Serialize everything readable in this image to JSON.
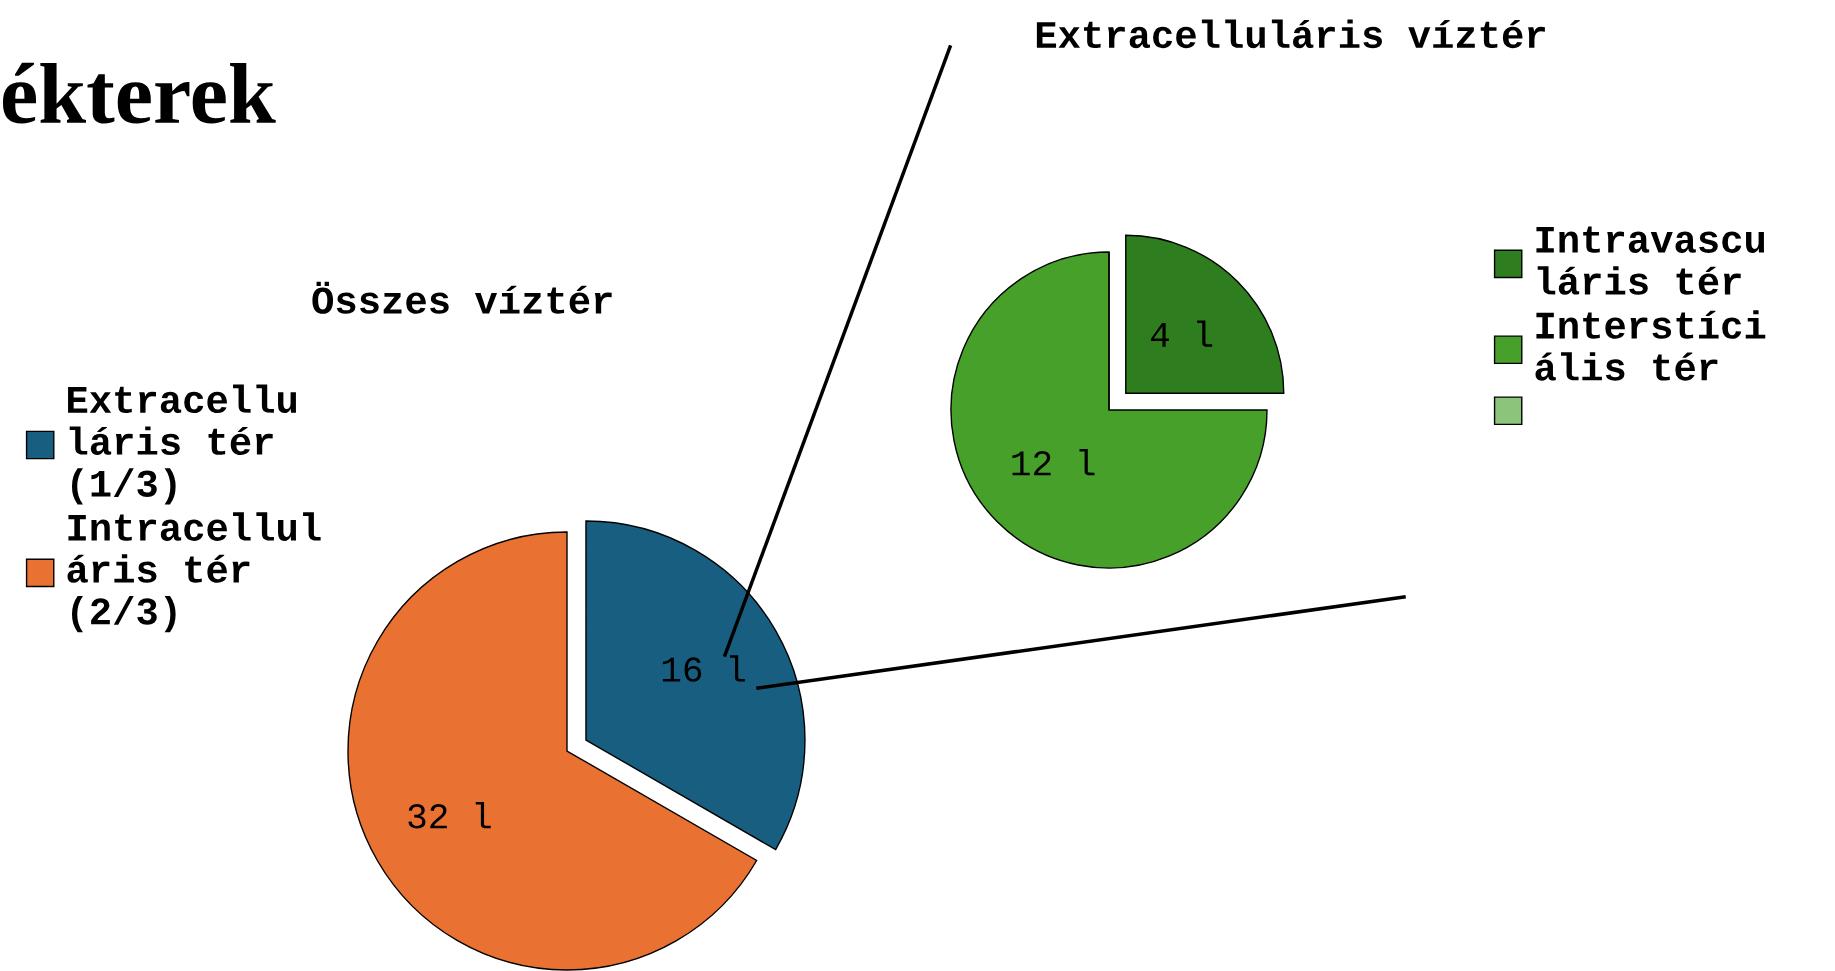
{
  "chart_data": [
    {
      "type": "pie",
      "title": "Összes víztér",
      "annotations": [
        "ékterek"
      ],
      "categories": [
        "Extracellu\nláris tér\n(1/3)",
        "Intracellul\náris tér\n(2/3)"
      ],
      "values": [
        16,
        32
      ],
      "value_labels": [
        "16 l",
        "32 l"
      ],
      "colors": [
        "#175e80",
        "#e97132"
      ],
      "legend": "left"
    },
    {
      "type": "pie",
      "title": "Extracelluláris víztér",
      "categories": [
        "Intravascu\nláris tér",
        "Interstíci\nális tér",
        null
      ],
      "values": [
        4,
        12,
        0
      ],
      "value_labels": [
        "4 l",
        "12 l",
        null
      ],
      "colors": [
        "#2e7d1e",
        "#46a02a",
        "#8bc47a"
      ],
      "legend": "right"
    }
  ]
}
